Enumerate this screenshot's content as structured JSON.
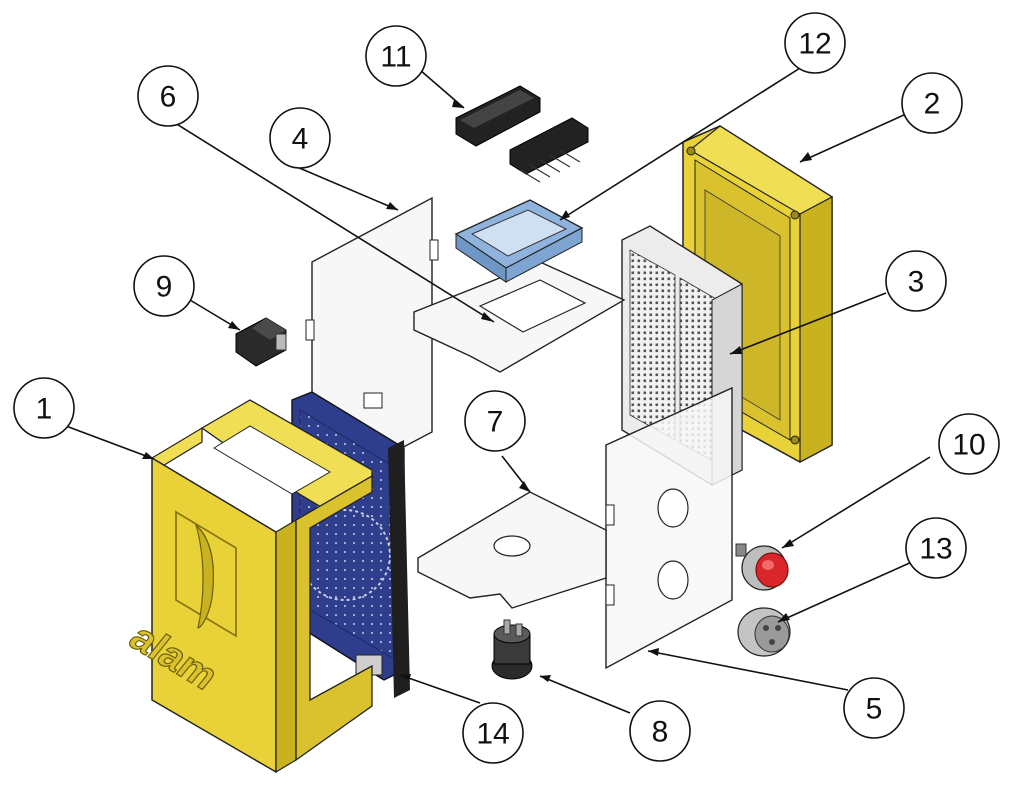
{
  "figure": {
    "logo_text": "alam",
    "callouts": [
      {
        "id": "1",
        "label": "1"
      },
      {
        "id": "2",
        "label": "2"
      },
      {
        "id": "3",
        "label": "3"
      },
      {
        "id": "4",
        "label": "4"
      },
      {
        "id": "5",
        "label": "5"
      },
      {
        "id": "6",
        "label": "6"
      },
      {
        "id": "7",
        "label": "7"
      },
      {
        "id": "8",
        "label": "8"
      },
      {
        "id": "9",
        "label": "9"
      },
      {
        "id": "10",
        "label": "10"
      },
      {
        "id": "11",
        "label": "11"
      },
      {
        "id": "12",
        "label": "12"
      },
      {
        "id": "13",
        "label": "13"
      },
      {
        "id": "14",
        "label": "14"
      }
    ],
    "colors": {
      "enclosure_yellow": "#E8D238",
      "enclosure_yellow_dark": "#C9B21F",
      "arduino_blue": "#2F3E8C",
      "bracket_blue": "#8FB3DC",
      "acrylic_panel": "#F7F7F7",
      "outline": "#222222",
      "button_red": "#D9262B"
    }
  }
}
